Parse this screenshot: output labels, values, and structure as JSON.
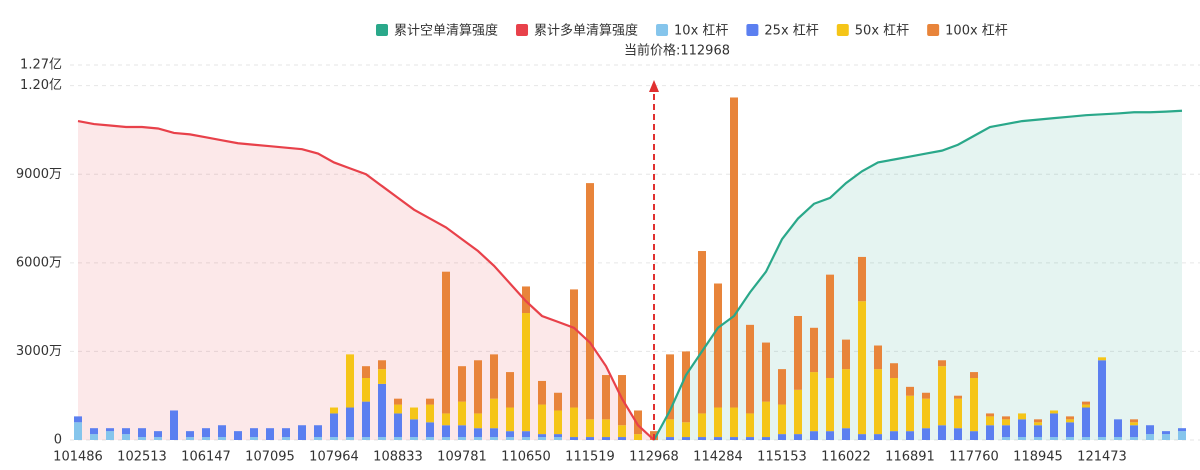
{
  "chart_data": {
    "type": "bar",
    "annotation": "当前价格:112968",
    "categories": [
      "101486",
      null,
      null,
      null,
      "102513",
      null,
      null,
      null,
      "106147",
      null,
      null,
      null,
      "107095",
      null,
      null,
      null,
      "107964",
      null,
      null,
      null,
      "108833",
      null,
      null,
      null,
      "109781",
      null,
      null,
      null,
      "110650",
      null,
      null,
      null,
      "111519",
      null,
      null,
      null,
      "112968",
      null,
      null,
      null,
      "114284",
      null,
      null,
      null,
      "115153",
      null,
      null,
      null,
      "116022",
      null,
      null,
      null,
      "116891",
      null,
      null,
      null,
      "117760",
      null,
      null,
      null,
      "118945",
      null,
      null,
      null,
      "121473",
      null,
      null,
      null,
      null,
      null
    ],
    "ylim": [
      0,
      12700
    ],
    "yticks": [
      0,
      {
        "value": 3000,
        "label": "3000万"
      },
      {
        "value": 6000,
        "label": "6000万"
      },
      {
        "value": 9000,
        "label": "9000万"
      },
      {
        "value": 12000,
        "label": "1.20亿"
      },
      {
        "value": 12700,
        "label": "1.27亿"
      }
    ],
    "grid": true,
    "series": [
      {
        "name": "累计空单清算强度",
        "type": "line",
        "color": "#2aa88a",
        "values": [
          null,
          null,
          null,
          null,
          null,
          null,
          null,
          null,
          null,
          null,
          null,
          null,
          null,
          null,
          null,
          null,
          null,
          null,
          null,
          null,
          null,
          null,
          null,
          null,
          null,
          null,
          null,
          null,
          null,
          null,
          null,
          null,
          null,
          null,
          null,
          null,
          0,
          1000,
          2200,
          3000,
          3800,
          4200,
          5000,
          5700,
          6800,
          7500,
          8000,
          8200,
          8700,
          9100,
          9400,
          9500,
          9600,
          9700,
          9800,
          10000,
          10300,
          10600,
          10700,
          10800,
          10850,
          10900,
          10950,
          11000,
          11030,
          11060,
          11100,
          11100,
          11120,
          11150
        ]
      },
      {
        "name": "累计多单清算强度",
        "type": "line",
        "color": "#e8414a",
        "values": [
          10800,
          10700,
          10650,
          10600,
          10600,
          10550,
          10400,
          10350,
          10250,
          10150,
          10050,
          10000,
          9950,
          9900,
          9850,
          9700,
          9400,
          9200,
          9000,
          8600,
          8200,
          7800,
          7500,
          7200,
          6800,
          6400,
          5900,
          5300,
          4700,
          4200,
          4000,
          3800,
          3300,
          2500,
          1400,
          500,
          0,
          null,
          null,
          null,
          null,
          null,
          null,
          null,
          null,
          null,
          null,
          null,
          null,
          null,
          null,
          null,
          null,
          null,
          null,
          null,
          null,
          null,
          null,
          null,
          null,
          null,
          null,
          null,
          null,
          null,
          null,
          null,
          null,
          null
        ]
      },
      {
        "name": "10x 杠杆",
        "type": "bar",
        "color": "#85c5ec",
        "values": [
          600,
          200,
          300,
          200,
          100,
          100,
          0,
          100,
          100,
          100,
          0,
          100,
          0,
          100,
          0,
          100,
          100,
          100,
          100,
          100,
          100,
          100,
          100,
          100,
          100,
          100,
          100,
          100,
          100,
          100,
          100,
          0,
          0,
          0,
          0,
          0,
          0,
          0,
          0,
          0,
          0,
          0,
          0,
          0,
          0,
          0,
          0,
          0,
          0,
          0,
          0,
          0,
          0,
          0,
          0,
          0,
          0,
          0,
          100,
          100,
          100,
          100,
          100,
          100,
          100,
          100,
          100,
          200,
          200,
          300
        ]
      },
      {
        "name": "25x 杠杆",
        "type": "bar",
        "color": "#5b7ff0",
        "values": [
          200,
          200,
          100,
          200,
          300,
          200,
          1000,
          200,
          300,
          400,
          300,
          300,
          400,
          300,
          500,
          400,
          800,
          1000,
          1200,
          1800,
          800,
          600,
          500,
          400,
          400,
          300,
          300,
          200,
          200,
          100,
          100,
          100,
          100,
          100,
          100,
          0,
          0,
          100,
          100,
          100,
          100,
          100,
          100,
          100,
          200,
          200,
          300,
          300,
          400,
          200,
          200,
          300,
          300,
          400,
          500,
          400,
          300,
          500,
          400,
          600,
          400,
          800,
          500,
          1000,
          2600,
          600,
          400,
          300,
          100,
          100
        ]
      },
      {
        "name": "50x 杠杆",
        "type": "bar",
        "color": "#f5c518",
        "values": [
          0,
          0,
          0,
          0,
          0,
          0,
          0,
          0,
          0,
          0,
          0,
          0,
          0,
          0,
          0,
          0,
          200,
          1800,
          800,
          500,
          300,
          400,
          600,
          400,
          800,
          500,
          1000,
          800,
          4000,
          1000,
          800,
          1000,
          600,
          600,
          400,
          200,
          0,
          600,
          500,
          800,
          1000,
          1000,
          800,
          1200,
          1000,
          1500,
          2000,
          1800,
          2000,
          4500,
          2200,
          1800,
          1200,
          1000,
          2000,
          1000,
          1800,
          300,
          200,
          200,
          100,
          100,
          100,
          100,
          100,
          0,
          100,
          0,
          0,
          0
        ]
      },
      {
        "name": "100x 杠杆",
        "type": "bar",
        "color": "#e8843a",
        "values": [
          0,
          0,
          0,
          0,
          0,
          0,
          0,
          0,
          0,
          0,
          0,
          0,
          0,
          0,
          0,
          0,
          0,
          0,
          400,
          300,
          200,
          0,
          200,
          4800,
          1200,
          1800,
          1500,
          1200,
          900,
          800,
          600,
          4000,
          8000,
          1500,
          1700,
          800,
          300,
          2200,
          2400,
          5500,
          4200,
          10500,
          3000,
          2000,
          1200,
          2500,
          1500,
          3500,
          1000,
          1500,
          800,
          500,
          300,
          200,
          200,
          100,
          200,
          100,
          100,
          0,
          100,
          0,
          100,
          100,
          0,
          0,
          100,
          0,
          0,
          0
        ]
      }
    ]
  }
}
